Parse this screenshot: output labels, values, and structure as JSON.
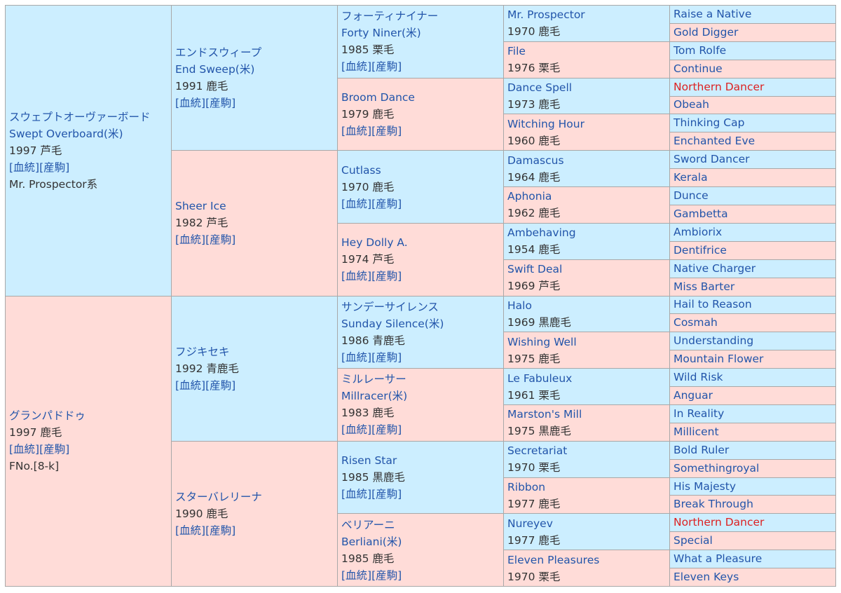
{
  "colors": {
    "male_bg": "#cceeff",
    "female_bg": "#ffdcd8",
    "link": "#2255aa",
    "highlight": "#dd2222",
    "border": "#a8a8a8"
  },
  "sire": {
    "name_ja": "スウェプトオーヴァーボード",
    "name_en": "Swept Overboard(米)",
    "info": "1997 芦毛",
    "links": "[血統][産駒]",
    "line": "Mr. Prospector系"
  },
  "dam": {
    "name_ja": "グランパドドゥ",
    "info": "1997 鹿毛",
    "links": "[血統][産駒]",
    "family": "FNo.[8-k]"
  },
  "gen2": {
    "ss": {
      "name_ja": "エンドスウィープ",
      "name_en": "End Sweep(米)",
      "info": "1991 鹿毛",
      "links": "[血統][産駒]"
    },
    "sd": {
      "name": "Sheer Ice",
      "info": "1982 芦毛",
      "links": "[血統][産駒]"
    },
    "ds": {
      "name_ja": "フジキセキ",
      "info": "1992 青鹿毛",
      "links": "[血統][産駒]"
    },
    "dd": {
      "name_ja": "スターバレリーナ",
      "info": "1990 鹿毛",
      "links": "[血統][産駒]"
    }
  },
  "gen3": {
    "sss": {
      "name_ja": "フォーティナイナー",
      "name_en": "Forty Niner(米)",
      "info": "1985 栗毛",
      "links": "[血統][産駒]"
    },
    "ssd": {
      "name": "Broom Dance",
      "info": "1979 鹿毛",
      "links": "[血統][産駒]"
    },
    "sds": {
      "name": "Cutlass",
      "info": "1970 鹿毛",
      "links": "[血統][産駒]"
    },
    "sdd": {
      "name": "Hey Dolly A.",
      "info": "1974 芦毛",
      "links": "[血統][産駒]"
    },
    "dss": {
      "name_ja": "サンデーサイレンス",
      "name_en": "Sunday Silence(米)",
      "info": "1986 青鹿毛",
      "links": "[血統][産駒]"
    },
    "dsd": {
      "name_ja": "ミルレーサー",
      "name_en": "Millracer(米)",
      "info": "1983 鹿毛",
      "links": "[血統][産駒]"
    },
    "dds": {
      "name": "Risen Star",
      "info": "1985 黒鹿毛",
      "links": "[血統][産駒]"
    },
    "ddd": {
      "name_ja": "ベリアーニ",
      "name_en": "Berliani(米)",
      "info": "1985 鹿毛",
      "links": "[血統][産駒]"
    }
  },
  "gen4": [
    {
      "name": "Mr. Prospector",
      "info": "1970 鹿毛"
    },
    {
      "name": "File",
      "info": "1976 栗毛"
    },
    {
      "name": "Dance Spell",
      "info": "1973 鹿毛"
    },
    {
      "name": "Witching Hour",
      "info": "1960 鹿毛"
    },
    {
      "name": "Damascus",
      "info": "1964 鹿毛"
    },
    {
      "name": "Aphonia",
      "info": "1962 鹿毛"
    },
    {
      "name": "Ambehaving",
      "info": "1954 鹿毛"
    },
    {
      "name": "Swift Deal",
      "info": "1969 芦毛"
    },
    {
      "name": "Halo",
      "info": "1969 黒鹿毛"
    },
    {
      "name": "Wishing Well",
      "info": "1975 鹿毛"
    },
    {
      "name": "Le Fabuleux",
      "info": "1961 栗毛"
    },
    {
      "name": "Marston's Mill",
      "info": "1975 黒鹿毛"
    },
    {
      "name": "Secretariat",
      "info": "1970 栗毛"
    },
    {
      "name": "Ribbon",
      "info": "1977 鹿毛"
    },
    {
      "name": "Nureyev",
      "info": "1977 鹿毛"
    },
    {
      "name": "Eleven Pleasures",
      "info": "1970 栗毛"
    }
  ],
  "gen5": [
    "Raise a Native",
    "Gold Digger",
    "Tom Rolfe",
    "Continue",
    "Northern Dancer",
    "Obeah",
    "Thinking Cap",
    "Enchanted Eve",
    "Sword Dancer",
    "Kerala",
    "Dunce",
    "Gambetta",
    "Ambiorix",
    "Dentifrice",
    "Native Charger",
    "Miss Barter",
    "Hail to Reason",
    "Cosmah",
    "Understanding",
    "Mountain Flower",
    "Wild Risk",
    "Anguar",
    "In Reality",
    "Millicent",
    "Bold Ruler",
    "Somethingroyal",
    "His Majesty",
    "Break Through",
    "Northern Dancer",
    "Special",
    "What a Pleasure",
    "Eleven Keys"
  ]
}
